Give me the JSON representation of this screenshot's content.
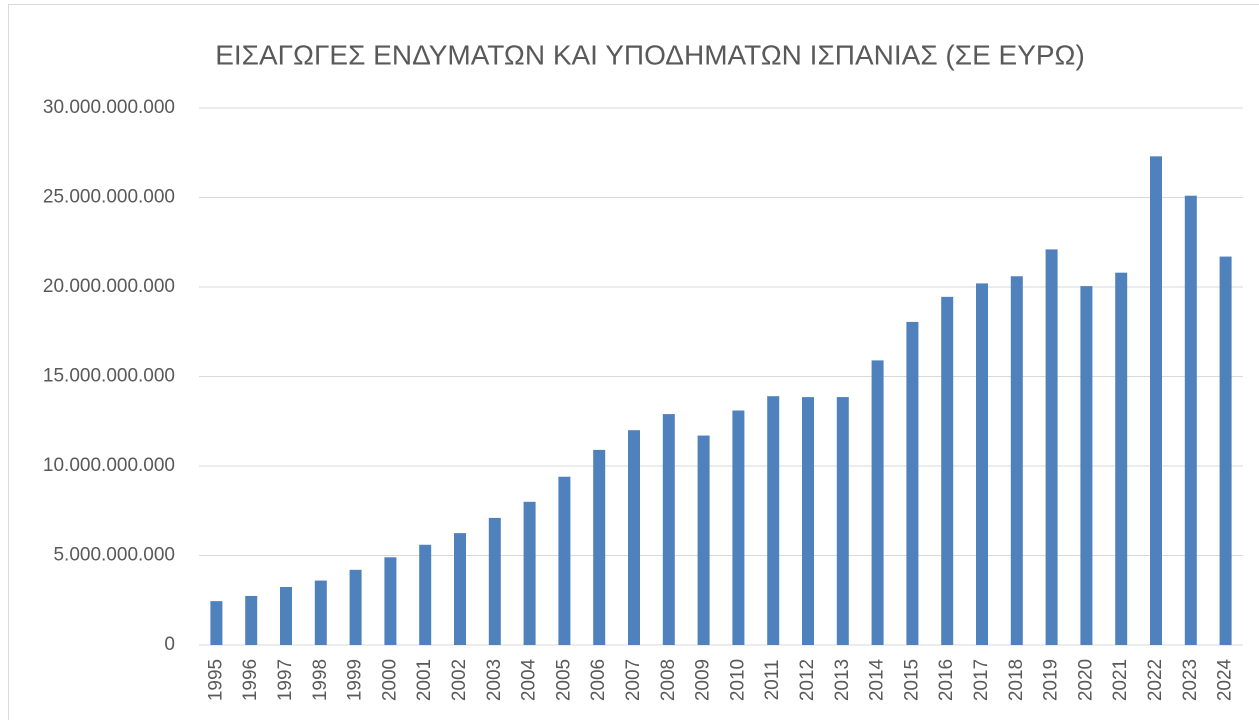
{
  "chart_data": {
    "type": "bar",
    "title": "ΕΙΣΑΓΩΓΕΣ ΕΝΔΥΜΑΤΩΝ ΚΑΙ ΥΠΟΔΗΜΑΤΩΝ ΙΣΠΑΝΙΑΣ (ΣΕ ΕΥΡΩ)",
    "categories": [
      "1995",
      "1996",
      "1997",
      "1998",
      "1999",
      "2000",
      "2001",
      "2002",
      "2003",
      "2004",
      "2005",
      "2006",
      "2007",
      "2008",
      "2009",
      "2010",
      "2011",
      "2012",
      "2013",
      "2014",
      "2015",
      "2016",
      "2017",
      "2018",
      "2019",
      "2020",
      "2021",
      "2022",
      "2023",
      "2024"
    ],
    "values": [
      2450000000,
      2740000000,
      3240000000,
      3600000000,
      4200000000,
      4900000000,
      5600000000,
      6250000000,
      7100000000,
      8000000000,
      9400000000,
      10900000000,
      12000000000,
      12900000000,
      11700000000,
      13100000000,
      13900000000,
      13850000000,
      13850000000,
      15900000000,
      18050000000,
      19450000000,
      20200000000,
      20600000000,
      22100000000,
      20050000000,
      20800000000,
      27300000000,
      25100000000,
      21700000000
    ],
    "color": "#4f81bd",
    "ylim": [
      0,
      30000000000
    ],
    "yticks": [
      0,
      {
        "value": 5000000000,
        "label": "5.000.000.000"
      },
      {
        "value": 10000000000,
        "label": "10.000.000.000"
      },
      {
        "value": 15000000000,
        "label": "15.000.000.000"
      },
      {
        "value": 20000000000,
        "label": "20.000.000.000"
      },
      {
        "value": 25000000000,
        "label": "25.000.000.000"
      },
      {
        "value": 30000000000,
        "label": "30.000.000.000"
      }
    ],
    "grid": true
  }
}
